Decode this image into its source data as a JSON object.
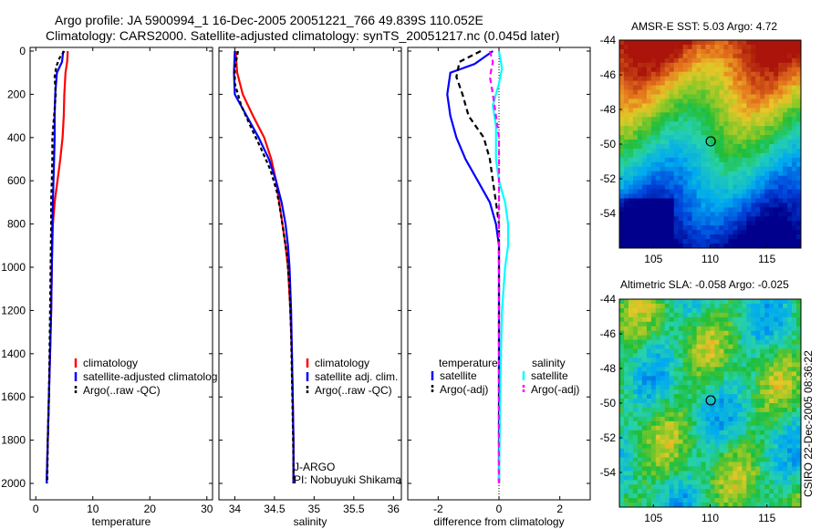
{
  "header": {
    "line1": "Argo profile: JA 5900994_1 16-Dec-2005 20051221_766 49.839S 110.052E",
    "line2": "Climatology: CARS2000. Satellite-adjusted climatology: synTS_20051217.nc (0.045d later)"
  },
  "side_label": "CSIRO 22-Dec-2005 08:36:22",
  "colors": {
    "climatology": "#ff0000",
    "satellite": "#0000ff",
    "argo": "#000000",
    "sal_satellite": "#00ffff",
    "sal_argo": "#ff00ff"
  },
  "chart_data": [
    {
      "id": "temperature",
      "type": "line",
      "xlabel": "temperature",
      "ylim": [
        0,
        2050
      ],
      "xlim": [
        -1,
        31
      ],
      "xticks": [
        0,
        10,
        20,
        30
      ],
      "yticks": [
        0,
        200,
        400,
        600,
        800,
        1000,
        1200,
        1400,
        1600,
        1800,
        2000
      ],
      "legend": [
        "climatology",
        "satellite-adjusted climatolog",
        "Argo(..raw -QC)"
      ],
      "series": [
        {
          "name": "climatology",
          "color": "#ff0000",
          "dash": "",
          "points": [
            [
              5.6,
              0
            ],
            [
              5.5,
              50
            ],
            [
              5.2,
              100
            ],
            [
              5.0,
              200
            ],
            [
              4.9,
              300
            ],
            [
              4.7,
              400
            ],
            [
              4.3,
              500
            ],
            [
              3.8,
              600
            ],
            [
              3.3,
              700
            ],
            [
              3.0,
              800
            ],
            [
              2.8,
              1000
            ],
            [
              2.7,
              1200
            ],
            [
              2.5,
              1400
            ],
            [
              2.3,
              1600
            ],
            [
              2.1,
              1800
            ],
            [
              1.9,
              2000
            ]
          ]
        },
        {
          "name": "satellite-adjusted climatolog",
          "color": "#0000ff",
          "dash": "",
          "points": [
            [
              4.8,
              0
            ],
            [
              4.6,
              50
            ],
            [
              3.7,
              100
            ],
            [
              3.4,
              200
            ],
            [
              3.3,
              300
            ],
            [
              3.3,
              400
            ],
            [
              3.2,
              500
            ],
            [
              3.1,
              600
            ],
            [
              3.0,
              700
            ],
            [
              2.9,
              800
            ],
            [
              2.8,
              1000
            ],
            [
              2.7,
              1200
            ],
            [
              2.5,
              1400
            ],
            [
              2.3,
              1600
            ],
            [
              2.1,
              1800
            ],
            [
              1.9,
              2000
            ]
          ]
        },
        {
          "name": "Argo(..raw -QC)",
          "color": "#000000",
          "dash": "4,3",
          "points": [
            [
              5.0,
              0
            ],
            [
              4.2,
              30
            ],
            [
              3.6,
              70
            ],
            [
              3.3,
              120
            ],
            [
              3.5,
              200
            ],
            [
              3.2,
              300
            ],
            [
              2.9,
              400
            ],
            [
              2.9,
              500
            ],
            [
              2.8,
              600
            ],
            [
              2.7,
              700
            ],
            [
              2.7,
              800
            ],
            [
              2.6,
              1000
            ],
            [
              2.5,
              1200
            ],
            [
              2.4,
              1400
            ],
            [
              2.3,
              1600
            ],
            [
              2.1,
              1800
            ],
            [
              2.0,
              2000
            ]
          ]
        }
      ]
    },
    {
      "id": "salinity",
      "type": "line",
      "xlabel": "salinity",
      "ylim": [
        0,
        2050
      ],
      "xlim": [
        33.8,
        36.1
      ],
      "xticks": [
        34,
        34.5,
        35,
        35.5,
        36
      ],
      "yticks": [
        0,
        200,
        400,
        600,
        800,
        1000,
        1200,
        1400,
        1600,
        1800,
        2000
      ],
      "legend": [
        "climatology",
        "satellite adj. clim.",
        "Argo(..raw -QC)"
      ],
      "annotations": [
        "J-ARGO",
        "PI: Nobuyuki Shikama"
      ],
      "series": [
        {
          "name": "climatology",
          "color": "#ff0000",
          "dash": "",
          "points": [
            [
              34.01,
              0
            ],
            [
              34.03,
              100
            ],
            [
              34.1,
              200
            ],
            [
              34.23,
              300
            ],
            [
              34.37,
              400
            ],
            [
              34.46,
              500
            ],
            [
              34.52,
              600
            ],
            [
              34.56,
              700
            ],
            [
              34.6,
              800
            ],
            [
              34.64,
              900
            ],
            [
              34.67,
              1000
            ],
            [
              34.7,
              1200
            ],
            [
              34.72,
              1400
            ],
            [
              34.73,
              1600
            ],
            [
              34.74,
              1800
            ],
            [
              34.74,
              2000
            ]
          ]
        },
        {
          "name": "satellite adj. clim.",
          "color": "#0000ff",
          "dash": "",
          "points": [
            [
              34.0,
              0
            ],
            [
              33.99,
              100
            ],
            [
              34.0,
              200
            ],
            [
              34.15,
              300
            ],
            [
              34.3,
              400
            ],
            [
              34.43,
              500
            ],
            [
              34.52,
              600
            ],
            [
              34.59,
              700
            ],
            [
              34.64,
              800
            ],
            [
              34.67,
              900
            ],
            [
              34.69,
              1000
            ],
            [
              34.71,
              1200
            ],
            [
              34.72,
              1400
            ],
            [
              34.73,
              1600
            ],
            [
              34.74,
              1800
            ],
            [
              34.74,
              2000
            ]
          ]
        },
        {
          "name": "Argo(..raw -QC)",
          "color": "#000000",
          "dash": "4,3",
          "points": [
            [
              34.04,
              0
            ],
            [
              34.0,
              80
            ],
            [
              34.0,
              150
            ],
            [
              34.08,
              250
            ],
            [
              34.2,
              350
            ],
            [
              34.33,
              450
            ],
            [
              34.45,
              550
            ],
            [
              34.53,
              650
            ],
            [
              34.58,
              750
            ],
            [
              34.62,
              850
            ],
            [
              34.66,
              950
            ],
            [
              34.69,
              1100
            ],
            [
              34.71,
              1300
            ],
            [
              34.72,
              1500
            ],
            [
              34.73,
              1700
            ],
            [
              34.74,
              1900
            ],
            [
              34.74,
              2000
            ]
          ]
        }
      ]
    },
    {
      "id": "difference",
      "type": "line",
      "xlabel": "difference from climatology",
      "ylim": [
        0,
        2050
      ],
      "xlim": [
        -3,
        3
      ],
      "xticks": [
        -2,
        0,
        2
      ],
      "yticks": [
        0,
        200,
        400,
        600,
        800,
        1000,
        1200,
        1400,
        1600,
        1800,
        2000
      ],
      "legend_headers": [
        "temperature",
        "salinity"
      ],
      "legend": [
        "satellite",
        "Argo(-adj)",
        "satellite",
        "Argo(-adj)"
      ],
      "series": [
        {
          "name": "temperature satellite",
          "color": "#0000ff",
          "dash": "",
          "points": [
            [
              -0.2,
              0
            ],
            [
              -0.8,
              60
            ],
            [
              -1.6,
              100
            ],
            [
              -1.7,
              200
            ],
            [
              -1.6,
              300
            ],
            [
              -1.4,
              400
            ],
            [
              -1.1,
              500
            ],
            [
              -0.7,
              600
            ],
            [
              -0.3,
              700
            ],
            [
              -0.1,
              800
            ],
            [
              0,
              900
            ],
            [
              0,
              1000
            ],
            [
              0,
              1200
            ],
            [
              0,
              1600
            ],
            [
              0,
              2000
            ]
          ]
        },
        {
          "name": "temperature Argo(-adj)",
          "color": "#000000",
          "dash": "6,4",
          "points": [
            [
              -0.6,
              0
            ],
            [
              -1.3,
              50
            ],
            [
              -1.4,
              120
            ],
            [
              -1.2,
              200
            ],
            [
              -1.0,
              300
            ],
            [
              -0.5,
              400
            ],
            [
              -0.3,
              500
            ],
            [
              -0.2,
              600
            ],
            [
              -0.1,
              700
            ],
            [
              0,
              800
            ],
            [
              0,
              1000
            ],
            [
              0,
              1400
            ],
            [
              0,
              2000
            ]
          ]
        },
        {
          "name": "salinity satellite",
          "color": "#00ffff",
          "dash": "",
          "points": [
            [
              0,
              0
            ],
            [
              0.1,
              80
            ],
            [
              0.0,
              150
            ],
            [
              -0.2,
              250
            ],
            [
              -0.1,
              350
            ],
            [
              -0.1,
              500
            ],
            [
              0.0,
              600
            ],
            [
              0.2,
              700
            ],
            [
              0.3,
              800
            ],
            [
              0.3,
              900
            ],
            [
              0.2,
              1000
            ],
            [
              0.1,
              1200
            ],
            [
              0.05,
              1500
            ],
            [
              0,
              2000
            ]
          ]
        },
        {
          "name": "salinity Argo(-adj)",
          "color": "#ff00ff",
          "dash": "6,4",
          "points": [
            [
              -0.3,
              0
            ],
            [
              -0.2,
              50
            ],
            [
              -0.3,
              120
            ],
            [
              -0.2,
              200
            ],
            [
              -0.1,
              300
            ],
            [
              0,
              400
            ],
            [
              0,
              500
            ],
            [
              0,
              600
            ],
            [
              0,
              800
            ],
            [
              0,
              1000
            ],
            [
              0,
              1500
            ],
            [
              0,
              2000
            ]
          ]
        }
      ]
    },
    {
      "id": "sst_map",
      "type": "heatmap",
      "title": "AMSR-E SST: 5.03 Argo: 4.72",
      "xlim": [
        102,
        118
      ],
      "ylim": [
        -56,
        -44
      ],
      "xticks": [
        105,
        110,
        115
      ],
      "yticks": [
        -44,
        -46,
        -48,
        -50,
        -52,
        -54
      ],
      "marker": [
        110.05,
        -49.84
      ]
    },
    {
      "id": "sla_map",
      "type": "heatmap",
      "title": "Altimetric SLA: -0.058 Argo: -0.025",
      "xlim": [
        102,
        118
      ],
      "ylim": [
        -56,
        -44
      ],
      "xticks": [
        105,
        110,
        115
      ],
      "yticks": [
        -44,
        -46,
        -48,
        -50,
        -52,
        -54
      ],
      "marker": [
        110.05,
        -49.84
      ]
    }
  ]
}
